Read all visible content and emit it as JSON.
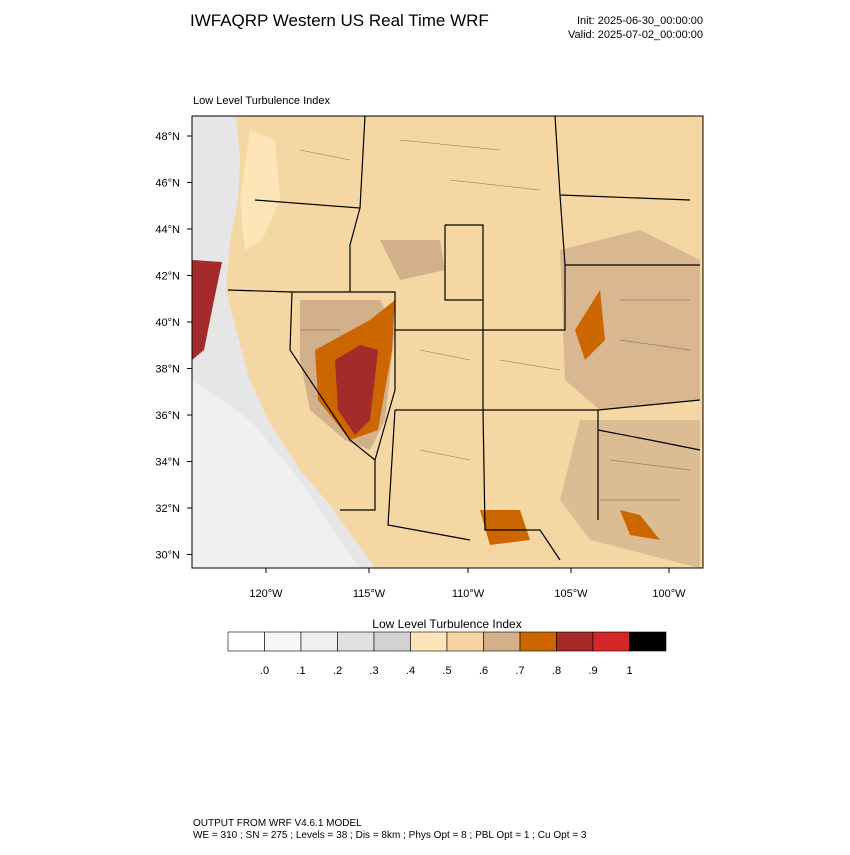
{
  "header": {
    "title": "IWFAQRP Western US Real Time WRF",
    "init": "Init: 2025-06-30_00:00:00",
    "valid": "Valid: 2025-07-02_00:00:00"
  },
  "map": {
    "title": "Low Level Turbulence Index",
    "lat_labels": [
      "48°N",
      "46°N",
      "44°N",
      "42°N",
      "40°N",
      "38°N",
      "36°N",
      "34°N",
      "32°N",
      "30°N"
    ],
    "lon_labels": [
      "120°W",
      "115°W",
      "110°W",
      "105°W",
      "100°W"
    ]
  },
  "colorbar": {
    "title": "Low Level Turbulence Index",
    "labels": [
      ".0",
      ".1",
      ".2",
      ".3",
      ".4",
      ".5",
      ".6",
      ".7",
      ".8",
      ".9",
      "1"
    ],
    "colors": [
      "#ffffff",
      "#f7f7f7",
      "#efefef",
      "#e0e0e0",
      "#d2d2d2",
      "#fde5b8",
      "#f5d4a2",
      "#d2b08c",
      "#cc6600",
      "#a52a2a",
      "#d62728",
      "#000000"
    ]
  },
  "footer": {
    "line1": "OUTPUT FROM WRF V4.6.1 MODEL",
    "line2": "WE = 310 ; SN = 275 ; Levels = 38 ; Dis = 8km ; Phys Opt = 8 ; PBL Opt = 1 ; Cu Opt = 3"
  }
}
